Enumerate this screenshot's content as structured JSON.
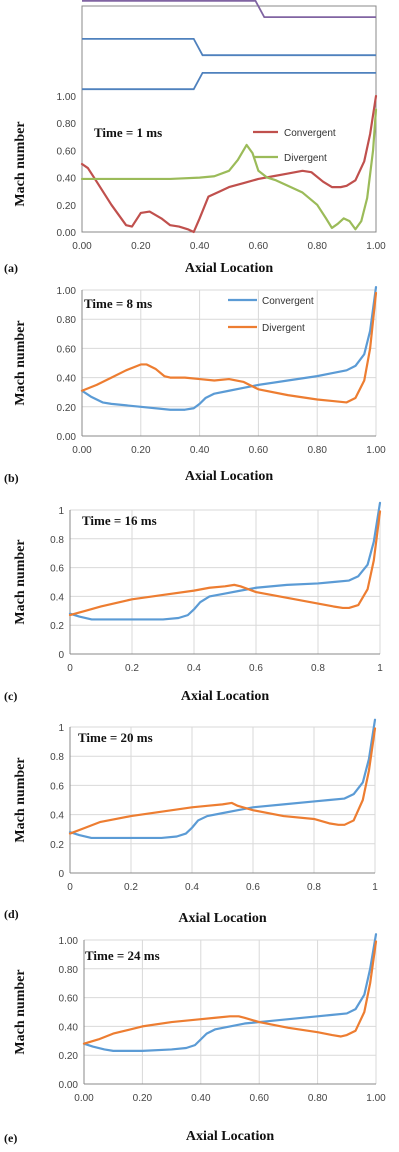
{
  "colors": {
    "convergent_a": "#c0504d",
    "divergent_a": "#9bbb59",
    "convergent": "#5b9bd5",
    "divergent": "#ed7d31",
    "geometry_upper": "#8064a2",
    "geometry_lower": "#4f81bd",
    "grid": "#d9d9d9",
    "axis": "#888888"
  },
  "chart_data": [
    {
      "type": "line",
      "panel": "(a)",
      "annotation": "Time = 1 ms",
      "xlabel": "Axial Location",
      "ylabel": "Mach number",
      "xlim": [
        0,
        1
      ],
      "ylim": [
        0,
        1
      ],
      "x_ticks": [
        "0.00",
        "0.20",
        "0.40",
        "0.60",
        "0.80",
        "1.00"
      ],
      "y_ticks": [
        "0.00",
        "0.20",
        "0.40",
        "0.60",
        "0.80",
        "1.00"
      ],
      "legend": "top-right",
      "grid": false,
      "series": [
        {
          "name": "Convergent",
          "color_key": "convergent_a",
          "x": [
            0,
            0.02,
            0.05,
            0.1,
            0.15,
            0.17,
            0.2,
            0.23,
            0.27,
            0.3,
            0.33,
            0.36,
            0.38,
            0.4,
            0.43,
            0.47,
            0.5,
            0.55,
            0.6,
            0.65,
            0.7,
            0.75,
            0.78,
            0.82,
            0.85,
            0.88,
            0.9,
            0.93,
            0.96,
            0.98,
            1.0
          ],
          "y": [
            0.5,
            0.47,
            0.37,
            0.2,
            0.05,
            0.04,
            0.14,
            0.15,
            0.1,
            0.05,
            0.04,
            0.02,
            0.0,
            0.1,
            0.26,
            0.3,
            0.33,
            0.36,
            0.39,
            0.41,
            0.43,
            0.45,
            0.44,
            0.37,
            0.33,
            0.33,
            0.34,
            0.38,
            0.52,
            0.72,
            1.0
          ]
        },
        {
          "name": "Divergent",
          "color_key": "divergent_a",
          "x": [
            0,
            0.1,
            0.2,
            0.3,
            0.4,
            0.45,
            0.5,
            0.53,
            0.56,
            0.58,
            0.6,
            0.63,
            0.66,
            0.7,
            0.75,
            0.8,
            0.83,
            0.85,
            0.87,
            0.89,
            0.91,
            0.93,
            0.95,
            0.97,
            0.99,
            1.0
          ],
          "y": [
            0.39,
            0.39,
            0.39,
            0.39,
            0.4,
            0.41,
            0.45,
            0.53,
            0.64,
            0.58,
            0.45,
            0.4,
            0.38,
            0.34,
            0.29,
            0.2,
            0.1,
            0.03,
            0.06,
            0.1,
            0.08,
            0.02,
            0.08,
            0.25,
            0.6,
            0.9
          ]
        }
      ],
      "geometry_lines": [
        {
          "color_key": "geometry_upper",
          "x": [
            0,
            0.59,
            0.62,
            1.0
          ],
          "y": [
            1.94,
            1.94,
            2.06,
            2.06
          ]
        },
        {
          "color_key": "geometry_upper",
          "x": [
            0,
            0.59,
            0.62,
            1.0
          ],
          "y": [
            1.7,
            1.7,
            1.58,
            1.58
          ]
        },
        {
          "color_key": "geometry_lower",
          "x": [
            0,
            0.38,
            0.41,
            1.0
          ],
          "y": [
            1.42,
            1.42,
            1.3,
            1.3
          ]
        },
        {
          "color_key": "geometry_lower",
          "x": [
            0,
            0.38,
            0.41,
            1.0
          ],
          "y": [
            1.05,
            1.05,
            1.17,
            1.17
          ]
        }
      ]
    },
    {
      "type": "line",
      "panel": "(b)",
      "annotation": "Time = 8 ms",
      "xlabel": "Axial Location",
      "ylabel": "Mach number",
      "xlim": [
        0,
        1
      ],
      "ylim": [
        0,
        1
      ],
      "x_ticks": [
        "0.00",
        "0.20",
        "0.40",
        "0.60",
        "0.80",
        "1.00"
      ],
      "y_ticks": [
        "0.00",
        "0.20",
        "0.40",
        "0.60",
        "0.80",
        "1.00"
      ],
      "legend": "top-right",
      "grid": true,
      "series": [
        {
          "name": "Convergent",
          "color_key": "convergent",
          "x": [
            0,
            0.03,
            0.07,
            0.1,
            0.2,
            0.3,
            0.35,
            0.38,
            0.4,
            0.42,
            0.45,
            0.5,
            0.55,
            0.6,
            0.7,
            0.8,
            0.85,
            0.9,
            0.93,
            0.96,
            0.98,
            1.0
          ],
          "y": [
            0.31,
            0.27,
            0.23,
            0.22,
            0.2,
            0.18,
            0.18,
            0.19,
            0.22,
            0.26,
            0.29,
            0.31,
            0.33,
            0.35,
            0.38,
            0.41,
            0.43,
            0.45,
            0.48,
            0.56,
            0.72,
            1.02
          ]
        },
        {
          "name": "Divergent",
          "color_key": "divergent",
          "x": [
            0,
            0.05,
            0.1,
            0.15,
            0.2,
            0.22,
            0.25,
            0.28,
            0.3,
            0.35,
            0.4,
            0.45,
            0.5,
            0.55,
            0.6,
            0.7,
            0.8,
            0.85,
            0.9,
            0.93,
            0.96,
            0.98,
            1.0
          ],
          "y": [
            0.31,
            0.35,
            0.4,
            0.45,
            0.49,
            0.49,
            0.46,
            0.41,
            0.4,
            0.4,
            0.39,
            0.38,
            0.39,
            0.37,
            0.32,
            0.28,
            0.25,
            0.24,
            0.23,
            0.26,
            0.38,
            0.6,
            0.98
          ]
        }
      ]
    },
    {
      "type": "line",
      "panel": "(c)",
      "annotation": "Time = 16 ms",
      "xlabel": "Axial Location",
      "ylabel": "Mach number",
      "xlim": [
        0,
        1
      ],
      "ylim": [
        0,
        1
      ],
      "x_ticks": [
        "0",
        "0.2",
        "0.4",
        "0.6",
        "0.8",
        "1"
      ],
      "y_ticks": [
        "0",
        "0.2",
        "0.4",
        "0.6",
        "0.8",
        "1"
      ],
      "grid": true,
      "series": [
        {
          "name": "Convergent",
          "color_key": "convergent",
          "x": [
            0,
            0.03,
            0.07,
            0.1,
            0.2,
            0.3,
            0.35,
            0.38,
            0.4,
            0.42,
            0.45,
            0.5,
            0.55,
            0.6,
            0.7,
            0.8,
            0.85,
            0.9,
            0.93,
            0.96,
            0.98,
            1.0
          ],
          "y": [
            0.28,
            0.26,
            0.24,
            0.24,
            0.24,
            0.24,
            0.25,
            0.27,
            0.31,
            0.36,
            0.4,
            0.42,
            0.44,
            0.46,
            0.48,
            0.49,
            0.5,
            0.51,
            0.54,
            0.62,
            0.78,
            1.05
          ]
        },
        {
          "name": "Divergent",
          "color_key": "divergent",
          "x": [
            0,
            0.05,
            0.1,
            0.2,
            0.3,
            0.4,
            0.45,
            0.5,
            0.53,
            0.55,
            0.6,
            0.7,
            0.8,
            0.85,
            0.88,
            0.9,
            0.93,
            0.96,
            0.98,
            1.0
          ],
          "y": [
            0.27,
            0.3,
            0.33,
            0.38,
            0.41,
            0.44,
            0.46,
            0.47,
            0.48,
            0.47,
            0.43,
            0.39,
            0.35,
            0.33,
            0.32,
            0.32,
            0.34,
            0.45,
            0.65,
            0.99
          ]
        }
      ]
    },
    {
      "type": "line",
      "panel": "(d)",
      "annotation": "Time = 20 ms",
      "xlabel": "Axial Location",
      "ylabel": "Mach number",
      "xlim": [
        0,
        1
      ],
      "ylim": [
        0,
        1
      ],
      "x_ticks": [
        "0",
        "0.2",
        "0.4",
        "0.6",
        "0.8",
        "1"
      ],
      "y_ticks": [
        "0",
        "0.2",
        "0.4",
        "0.6",
        "0.8",
        "1"
      ],
      "grid": true,
      "series": [
        {
          "name": "Convergent",
          "color_key": "convergent",
          "x": [
            0,
            0.03,
            0.07,
            0.1,
            0.2,
            0.3,
            0.35,
            0.38,
            0.4,
            0.42,
            0.45,
            0.5,
            0.55,
            0.6,
            0.7,
            0.8,
            0.85,
            0.9,
            0.93,
            0.96,
            0.98,
            1.0
          ],
          "y": [
            0.28,
            0.26,
            0.24,
            0.24,
            0.24,
            0.24,
            0.25,
            0.27,
            0.31,
            0.36,
            0.39,
            0.41,
            0.43,
            0.45,
            0.47,
            0.49,
            0.5,
            0.51,
            0.54,
            0.62,
            0.78,
            1.05
          ]
        },
        {
          "name": "Divergent",
          "color_key": "divergent",
          "x": [
            0,
            0.05,
            0.1,
            0.2,
            0.3,
            0.4,
            0.45,
            0.5,
            0.53,
            0.55,
            0.6,
            0.7,
            0.8,
            0.85,
            0.88,
            0.9,
            0.93,
            0.96,
            0.98,
            1.0
          ],
          "y": [
            0.27,
            0.31,
            0.35,
            0.39,
            0.42,
            0.45,
            0.46,
            0.47,
            0.48,
            0.46,
            0.43,
            0.39,
            0.37,
            0.34,
            0.33,
            0.33,
            0.36,
            0.5,
            0.7,
            0.99
          ]
        }
      ]
    },
    {
      "type": "line",
      "panel": "(e)",
      "annotation": "Time = 24 ms",
      "xlabel": "Axial Location",
      "ylabel": "Mach number",
      "xlim": [
        0,
        1
      ],
      "ylim": [
        0,
        1
      ],
      "x_ticks": [
        "0.00",
        "0.20",
        "0.40",
        "0.60",
        "0.80",
        "1.00"
      ],
      "y_ticks": [
        "0.00",
        "0.20",
        "0.40",
        "0.60",
        "0.80",
        "1.00"
      ],
      "grid": true,
      "series": [
        {
          "name": "Convergent",
          "color_key": "convergent",
          "x": [
            0,
            0.03,
            0.07,
            0.1,
            0.2,
            0.3,
            0.35,
            0.38,
            0.4,
            0.42,
            0.45,
            0.5,
            0.55,
            0.6,
            0.7,
            0.8,
            0.85,
            0.9,
            0.93,
            0.96,
            0.98,
            1.0
          ],
          "y": [
            0.28,
            0.26,
            0.24,
            0.23,
            0.23,
            0.24,
            0.25,
            0.27,
            0.31,
            0.35,
            0.38,
            0.4,
            0.42,
            0.43,
            0.45,
            0.47,
            0.48,
            0.49,
            0.52,
            0.62,
            0.8,
            1.04
          ]
        },
        {
          "name": "Divergent",
          "color_key": "divergent",
          "x": [
            0,
            0.05,
            0.1,
            0.2,
            0.3,
            0.4,
            0.45,
            0.5,
            0.53,
            0.55,
            0.6,
            0.7,
            0.8,
            0.85,
            0.88,
            0.9,
            0.93,
            0.96,
            0.98,
            1.0
          ],
          "y": [
            0.28,
            0.31,
            0.35,
            0.4,
            0.43,
            0.45,
            0.46,
            0.47,
            0.47,
            0.46,
            0.43,
            0.39,
            0.36,
            0.34,
            0.33,
            0.34,
            0.37,
            0.5,
            0.7,
            0.99
          ]
        }
      ]
    }
  ]
}
